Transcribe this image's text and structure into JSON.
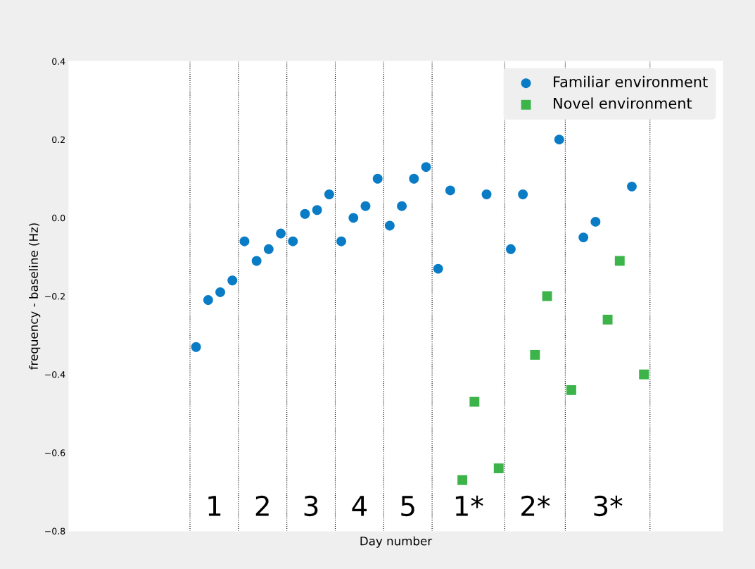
{
  "chart_data": {
    "type": "scatter",
    "xlabel": "Day number",
    "ylabel": "frequency - baseline (Hz)",
    "categories": [
      null,
      null,
      null,
      null,
      null,
      null,
      null,
      null,
      null,
      null,
      null,
      null,
      null,
      null,
      null,
      null,
      null,
      null,
      null,
      null,
      null,
      null,
      null,
      null,
      null,
      null,
      null,
      null,
      null,
      null,
      null,
      null,
      null,
      null,
      null,
      null,
      null,
      null,
      null,
      null,
      null,
      null,
      null,
      null,
      null,
      null,
      null,
      null,
      null,
      null,
      null,
      null,
      null,
      null
    ],
    "ylim": [
      -0.8,
      0.4
    ],
    "yticks": [
      {
        "value": -0.8,
        "label": "−0.8"
      },
      {
        "value": -0.6,
        "label": "−0.6"
      },
      {
        "value": -0.4,
        "label": "−0.4"
      },
      {
        "value": -0.2,
        "label": "−0.2"
      },
      {
        "value": 0.0,
        "label": "0.0"
      },
      {
        "value": 0.2,
        "label": "0.2"
      },
      {
        "value": 0.4,
        "label": "0.4"
      }
    ],
    "tick_labels": "y",
    "legend": "top right",
    "series": [
      {
        "name": "Familiar environment",
        "color": "#0a7cc6",
        "marker": "circle",
        "values": [
          null,
          null,
          null,
          null,
          null,
          null,
          null,
          null,
          null,
          null,
          -0.33,
          -0.21,
          -0.19,
          -0.16,
          -0.06,
          -0.11,
          -0.08,
          -0.04,
          -0.06,
          0.01,
          0.02,
          0.06,
          -0.06,
          0.0,
          0.03,
          0.1,
          -0.02,
          0.03,
          0.1,
          0.13,
          -0.13,
          0.07,
          null,
          null,
          0.06,
          null,
          -0.08,
          0.06,
          null,
          null,
          0.2,
          null,
          -0.05,
          -0.01,
          null,
          null,
          0.08,
          null,
          null,
          null,
          null,
          null,
          null,
          null
        ]
      },
      {
        "name": "Novel environment",
        "color": "#3cb44a",
        "marker": "square",
        "values": [
          null,
          null,
          null,
          null,
          null,
          null,
          null,
          null,
          null,
          null,
          null,
          null,
          null,
          null,
          null,
          null,
          null,
          null,
          null,
          null,
          null,
          null,
          null,
          null,
          null,
          null,
          null,
          null,
          null,
          null,
          null,
          null,
          -0.67,
          -0.47,
          null,
          -0.64,
          null,
          null,
          -0.35,
          -0.2,
          null,
          -0.44,
          null,
          null,
          -0.26,
          -0.11,
          null,
          -0.4,
          null,
          null,
          null,
          null,
          null,
          null
        ]
      }
    ],
    "annotations": [
      "1",
      "2",
      "3",
      "4",
      "5",
      "1*",
      "2*",
      "3*"
    ]
  }
}
